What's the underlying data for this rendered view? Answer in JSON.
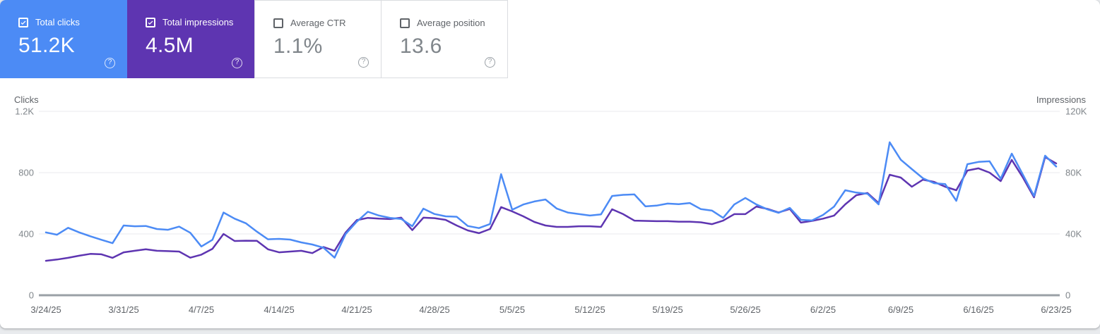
{
  "icons": {
    "help_glyph": "?"
  },
  "cards": [
    {
      "id": "total-clicks",
      "label": "Total clicks",
      "value": "51.2K",
      "checked": true,
      "selected": true,
      "bg": "#4C8BF5"
    },
    {
      "id": "total-impressions",
      "label": "Total impressions",
      "value": "4.5M",
      "checked": true,
      "selected": true,
      "bg": "#5E35B1"
    },
    {
      "id": "average-ctr",
      "label": "Average CTR",
      "value": "1.1%",
      "checked": false,
      "selected": false,
      "bg": "#ffffff"
    },
    {
      "id": "average-position",
      "label": "Average position",
      "value": "13.6",
      "checked": false,
      "selected": false,
      "bg": "#ffffff"
    }
  ],
  "chart_data": {
    "type": "line",
    "ylabel_left": "Clicks",
    "ylabel_right": "Impressions",
    "y_left_max": 1200,
    "y_right_max": 120000,
    "y_left_ticks": [
      "1.2K",
      "800",
      "400",
      "0"
    ],
    "y_right_ticks": [
      "120K",
      "80K",
      "40K",
      "0"
    ],
    "x_tick_labels": [
      "3/24/25",
      "3/31/25",
      "4/7/25",
      "4/14/25",
      "4/21/25",
      "4/28/25",
      "5/5/25",
      "5/12/25",
      "5/19/25",
      "5/26/25",
      "6/2/25",
      "6/9/25",
      "6/16/25",
      "6/23/25"
    ],
    "grid": true,
    "legend_position": "none",
    "x": [
      "3/24/25",
      "3/25/25",
      "3/26/25",
      "3/27/25",
      "3/28/25",
      "3/29/25",
      "3/30/25",
      "3/31/25",
      "4/1/25",
      "4/2/25",
      "4/3/25",
      "4/4/25",
      "4/5/25",
      "4/6/25",
      "4/7/25",
      "4/8/25",
      "4/9/25",
      "4/10/25",
      "4/11/25",
      "4/12/25",
      "4/13/25",
      "4/14/25",
      "4/15/25",
      "4/16/25",
      "4/17/25",
      "4/18/25",
      "4/19/25",
      "4/20/25",
      "4/21/25",
      "4/22/25",
      "4/23/25",
      "4/24/25",
      "4/25/25",
      "4/26/25",
      "4/27/25",
      "4/28/25",
      "4/29/25",
      "4/30/25",
      "5/1/25",
      "5/2/25",
      "5/3/25",
      "5/4/25",
      "5/5/25",
      "5/6/25",
      "5/7/25",
      "5/8/25",
      "5/9/25",
      "5/10/25",
      "5/11/25",
      "5/12/25",
      "5/13/25",
      "5/14/25",
      "5/15/25",
      "5/16/25",
      "5/17/25",
      "5/18/25",
      "5/19/25",
      "5/20/25",
      "5/21/25",
      "5/22/25",
      "5/23/25",
      "5/24/25",
      "5/25/25",
      "5/26/25",
      "5/27/25",
      "5/28/25",
      "5/29/25",
      "5/30/25",
      "5/31/25",
      "6/1/25",
      "6/2/25",
      "6/3/25",
      "6/4/25",
      "6/5/25",
      "6/6/25",
      "6/7/25",
      "6/8/25",
      "6/9/25",
      "6/10/25",
      "6/11/25",
      "6/12/25",
      "6/13/25",
      "6/14/25",
      "6/15/25",
      "6/16/25",
      "6/17/25",
      "6/18/25",
      "6/19/25",
      "6/20/25",
      "6/21/25",
      "6/22/25",
      "6/23/25"
    ],
    "series": [
      {
        "name": "Total clicks",
        "axis": "left",
        "color": "#4C8BF5",
        "values": [
          410,
          395,
          440,
          410,
          385,
          362,
          340,
          455,
          450,
          452,
          432,
          427,
          448,
          408,
          318,
          362,
          540,
          500,
          470,
          415,
          365,
          368,
          363,
          345,
          331,
          310,
          245,
          400,
          480,
          545,
          520,
          505,
          498,
          450,
          565,
          530,
          515,
          512,
          452,
          438,
          465,
          790,
          558,
          592,
          612,
          625,
          566,
          540,
          530,
          520,
          528,
          648,
          655,
          658,
          580,
          585,
          598,
          594,
          602,
          562,
          552,
          505,
          592,
          635,
          592,
          560,
          538,
          570,
          492,
          488,
          524,
          579,
          685,
          670,
          662,
          593,
          998,
          884,
          823,
          763,
          731,
          725,
          616,
          855,
          870,
          874,
          760,
          924,
          786,
          648,
          911,
          840
        ]
      },
      {
        "name": "Total impressions",
        "axis": "right",
        "color": "#5E35B1",
        "values": [
          22500,
          23300,
          24400,
          25800,
          27000,
          26700,
          24400,
          28000,
          29000,
          30000,
          29000,
          28800,
          28500,
          24500,
          26500,
          30300,
          40000,
          35400,
          35600,
          35500,
          30000,
          28000,
          28500,
          29000,
          27500,
          31500,
          29000,
          41000,
          49000,
          50500,
          50000,
          49700,
          50600,
          42500,
          50600,
          50300,
          49200,
          45500,
          42300,
          40500,
          43200,
          57500,
          54700,
          51500,
          47800,
          45500,
          44600,
          44600,
          45000,
          45000,
          44600,
          56100,
          52900,
          48700,
          48500,
          48300,
          48300,
          48000,
          48000,
          47600,
          46400,
          48700,
          52900,
          52900,
          57900,
          56300,
          54000,
          56300,
          47400,
          48500,
          50000,
          52000,
          59300,
          65300,
          66700,
          60200,
          78600,
          76800,
          70800,
          75400,
          74000,
          70800,
          68500,
          81400,
          82800,
          80000,
          74500,
          88300,
          76800,
          63900,
          90100,
          86000
        ]
      }
    ]
  }
}
